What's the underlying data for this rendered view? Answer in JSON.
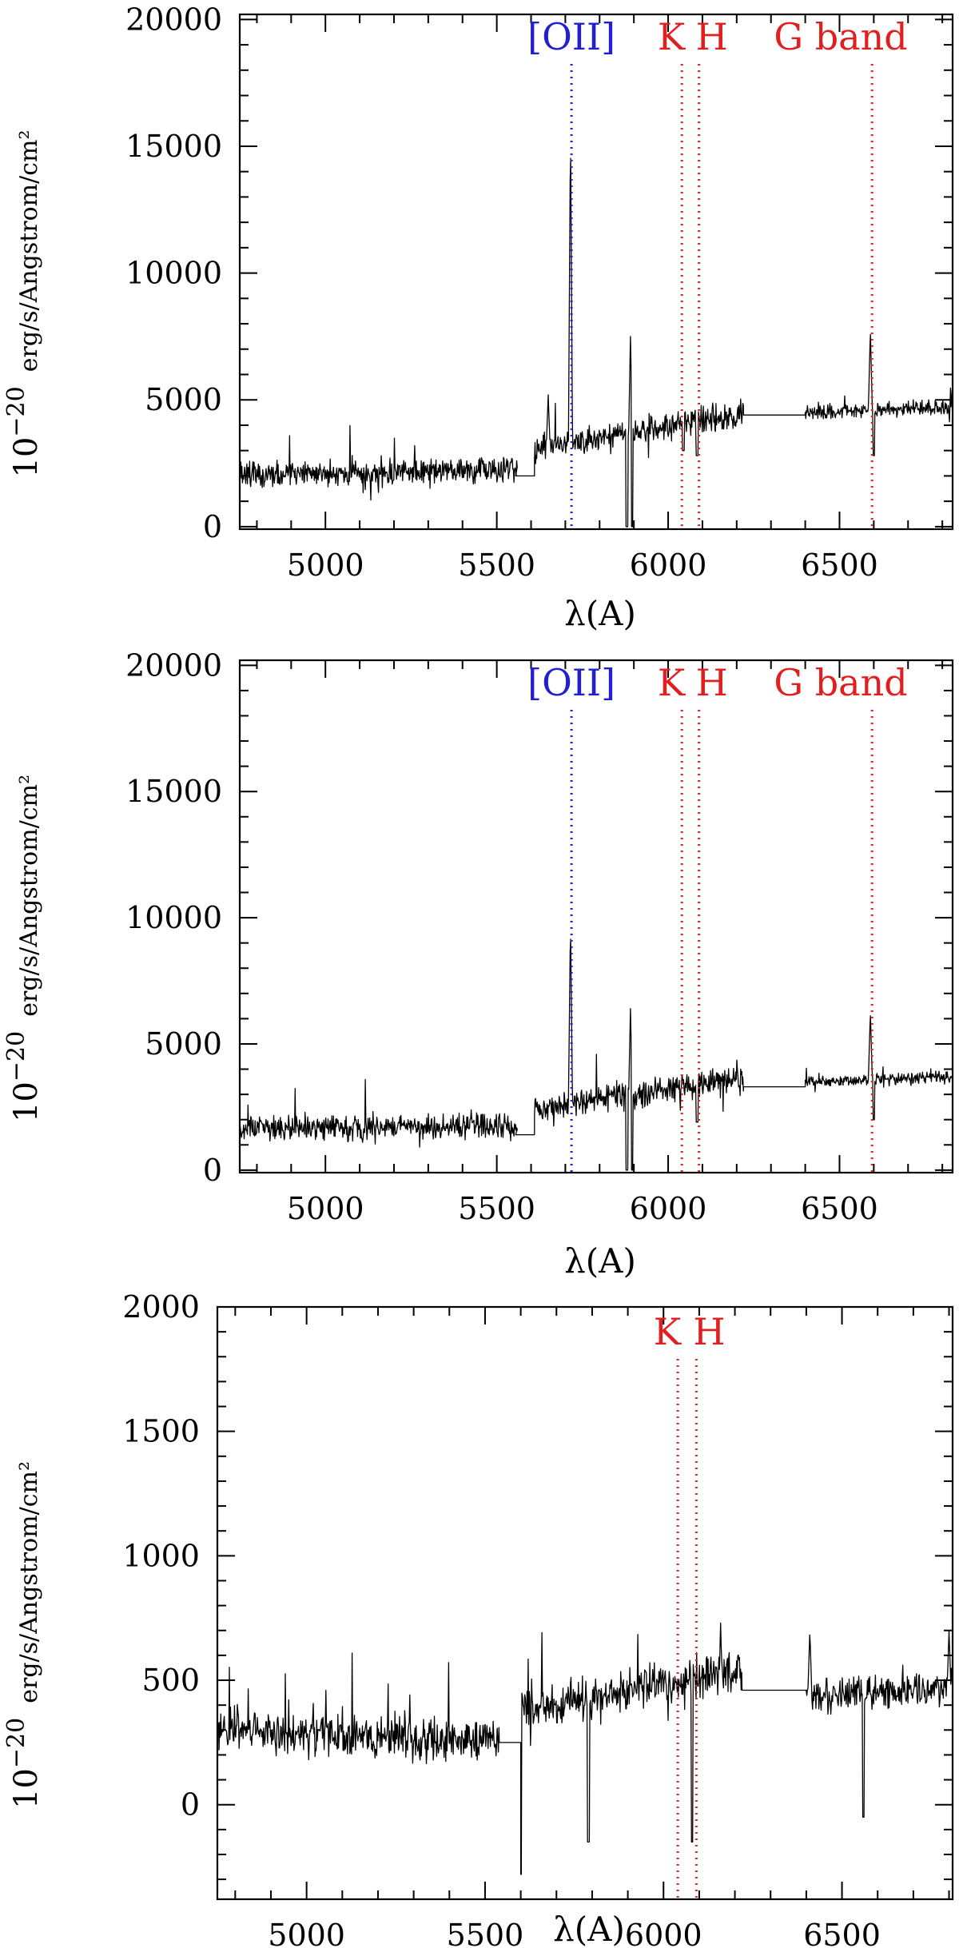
{
  "chart_data": [
    {
      "type": "line",
      "xlabel": "λ(A)",
      "ylabel_main": "erg/s/Angstrom/cm²",
      "ylabel_prefix": "10",
      "ylabel_exp": "−20",
      "xlim": [
        4750,
        6830
      ],
      "ylim": [
        -100,
        20200
      ],
      "xticks_major": [
        5000,
        5500,
        6000,
        6500
      ],
      "xtick_minor_step": 100,
      "yticks_major": [
        0,
        5000,
        10000,
        15000,
        20000
      ],
      "ytick_minor_step": 1000,
      "series": [
        {
          "gap": [
            5555,
            5610,
            2000
          ],
          "gap2": [
            6220,
            6400,
            4400
          ],
          "segments": [
            {
              "from": 4750,
              "to": 5560,
              "level": 2000,
              "noise": 900,
              "slope": 250
            },
            {
              "from": 5610,
              "to": 6220,
              "level": 3000,
              "noise": 1000,
              "slope": 1500
            },
            {
              "from": 6400,
              "to": 6830,
              "level": 4500,
              "noise": 500,
              "slope": 200
            }
          ],
          "peaks": [
            [
              5715,
              15800
            ],
            [
              5890,
              7500
            ],
            [
              6590,
              7800
            ],
            [
              5650,
              5200
            ]
          ],
          "dips": [
            [
              5880,
              0
            ],
            [
              5895,
              0
            ],
            [
              6600,
              2800
            ],
            [
              6085,
              2800
            ],
            [
              6045,
              3000
            ]
          ]
        }
      ],
      "lines": [
        {
          "label": "[OII]",
          "x": 5718,
          "color": "#2020d0"
        },
        {
          "label": "K",
          "x": 6040,
          "color": "#e02020"
        },
        {
          "label": "H",
          "x": 6090,
          "color": "#e02020"
        },
        {
          "label": "G band",
          "x": 6595,
          "color": "#e02020"
        }
      ]
    },
    {
      "type": "line",
      "xlabel": "λ(A)",
      "ylabel_main": "erg/s/Angstrom/cm²",
      "ylabel_prefix": "10",
      "ylabel_exp": "−20",
      "xlim": [
        4750,
        6830
      ],
      "ylim": [
        -100,
        20200
      ],
      "xticks_major": [
        5000,
        5500,
        6000,
        6500
      ],
      "xtick_minor_step": 100,
      "yticks_major": [
        0,
        5000,
        10000,
        15000,
        20000
      ],
      "ytick_minor_step": 1000,
      "series": [
        {
          "gap": [
            5555,
            5610,
            1400
          ],
          "gap2": [
            6220,
            6400,
            3300
          ],
          "segments": [
            {
              "from": 4750,
              "to": 5560,
              "level": 1600,
              "noise": 900,
              "slope": 200
            },
            {
              "from": 5610,
              "to": 6220,
              "level": 2400,
              "noise": 900,
              "slope": 1300
            },
            {
              "from": 6400,
              "to": 6830,
              "level": 3500,
              "noise": 450,
              "slope": 200
            }
          ],
          "peaks": [
            [
              5715,
              9900
            ],
            [
              5890,
              6400
            ],
            [
              6590,
              6300
            ]
          ],
          "dips": [
            [
              5880,
              0
            ],
            [
              5895,
              0
            ],
            [
              6600,
              2000
            ],
            [
              6085,
              1900
            ]
          ]
        }
      ],
      "lines": [
        {
          "label": "[OII]",
          "x": 5718,
          "color": "#2020d0"
        },
        {
          "label": "K",
          "x": 6040,
          "color": "#e02020"
        },
        {
          "label": "H",
          "x": 6090,
          "color": "#e02020"
        },
        {
          "label": "G band",
          "x": 6595,
          "color": "#e02020"
        }
      ]
    },
    {
      "type": "line",
      "xlabel": "λ(A)",
      "ylabel_main": "erg/s/Angstrom/cm²",
      "ylabel_prefix": "10",
      "ylabel_exp": "−20",
      "xlim": [
        4750,
        6810
      ],
      "ylim": [
        -380,
        2000
      ],
      "xticks_major": [
        5000,
        5500,
        6000,
        6500
      ],
      "xtick_minor_step": 100,
      "yticks_major": [
        0,
        500,
        1000,
        1500,
        2000
      ],
      "ytick_minor_step": 100,
      "series": [
        {
          "gap": [
            5540,
            5600,
            250
          ],
          "gap2": [
            6220,
            6400,
            460
          ],
          "segments": [
            {
              "from": 4750,
              "to": 5540,
              "level": 300,
              "noise": 150,
              "slope": -40
            },
            {
              "from": 5600,
              "to": 6220,
              "level": 380,
              "noise": 150,
              "slope": 160
            },
            {
              "from": 6400,
              "to": 6810,
              "level": 430,
              "noise": 130,
              "slope": 40
            }
          ],
          "peaks": [
            [
              6160,
              730
            ],
            [
              6410,
              700
            ],
            [
              6800,
              700
            ]
          ],
          "dips": [
            [
              5600,
              -280
            ],
            [
              5790,
              -150
            ],
            [
              6080,
              -150
            ],
            [
              6560,
              -50
            ]
          ]
        }
      ],
      "lines": [
        {
          "label": "K",
          "x": 6040,
          "color": "#e02020"
        },
        {
          "label": "H",
          "x": 6092,
          "color": "#e02020"
        }
      ]
    }
  ]
}
